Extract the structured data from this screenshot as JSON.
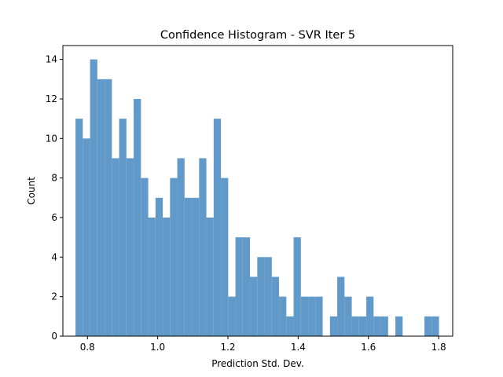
{
  "chart_data": {
    "type": "bar",
    "title": "Confidence Histogram - SVR Iter 5",
    "xlabel": "Prediction Std. Dev.",
    "ylabel": "Count",
    "xlim": [
      0.73,
      1.84
    ],
    "ylim": [
      0,
      14.7
    ],
    "xticks": [
      0.8,
      1.0,
      1.2,
      1.4,
      1.6,
      1.8
    ],
    "xtick_labels": [
      "0.8",
      "1.0",
      "1.2",
      "1.4",
      "1.6",
      "1.8"
    ],
    "yticks": [
      0,
      2,
      4,
      6,
      8,
      10,
      12,
      14
    ],
    "ytick_labels": [
      "0",
      "2",
      "4",
      "6",
      "8",
      "10",
      "12",
      "14"
    ],
    "bin_start": 0.766,
    "bin_end": 1.801,
    "bar_color": "#6199c9",
    "grid": false,
    "legend": "none",
    "values": [
      11,
      10,
      14,
      13,
      13,
      9,
      11,
      9,
      12,
      8,
      6,
      7,
      6,
      8,
      9,
      7,
      7,
      9,
      6,
      11,
      8,
      2,
      5,
      5,
      3,
      4,
      4,
      3,
      2,
      1,
      5,
      2,
      2,
      2,
      0,
      1,
      3,
      2,
      1,
      1,
      2,
      1,
      1,
      0,
      1,
      0,
      0,
      0,
      1,
      1
    ]
  }
}
